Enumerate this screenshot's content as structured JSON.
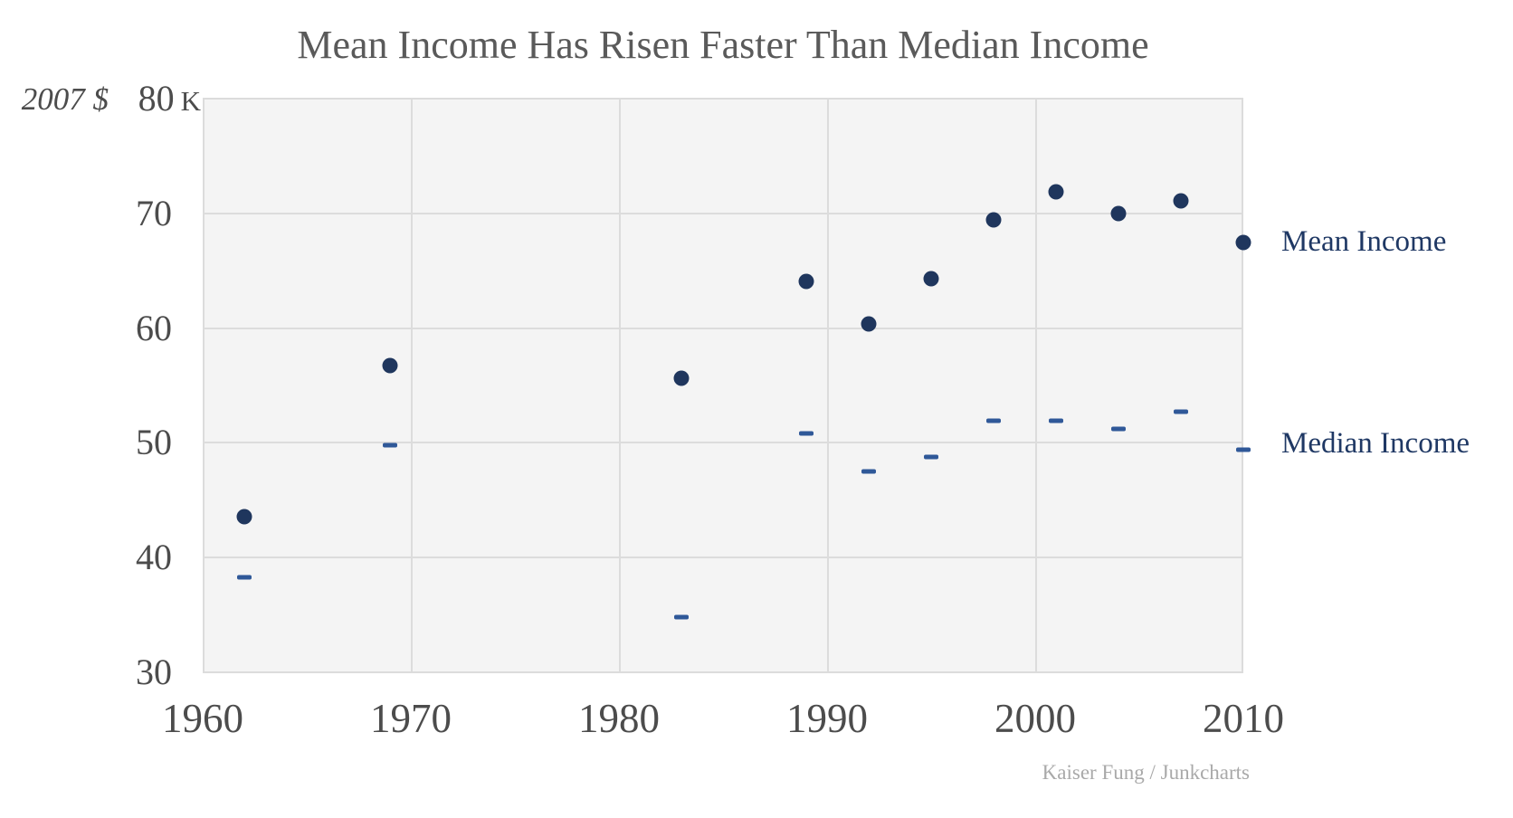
{
  "title": "Mean Income Has Risen Faster Than Median Income",
  "y_axis": {
    "unit_label": "2007 $",
    "top_tick_suffix": "K",
    "tick_labels": [
      "80",
      "70",
      "60",
      "50",
      "40",
      "30"
    ]
  },
  "x_axis": {
    "tick_labels": [
      "1960",
      "1970",
      "1980",
      "1990",
      "2000",
      "2010"
    ]
  },
  "legend": {
    "mean_label": "Mean Income",
    "median_label": "Median Income"
  },
  "attribution": "Kaiser Fung / Junkcharts",
  "colors": {
    "mean_dot": "#1f365d",
    "median_dash": "#2f5898",
    "legend_text": "#1f3864",
    "grid": "#dcdcdc",
    "plot_background": "#f4f4f4",
    "axis_text": "#4c4c4c",
    "title_text": "#5a5a5a",
    "attribution_text": "#a9a9a9"
  },
  "chart_data": {
    "type": "scatter",
    "title": "Mean Income Has Risen Faster Than Median Income",
    "x": [
      1962,
      1969,
      1983,
      1989,
      1992,
      1995,
      1998,
      2001,
      2004,
      2007,
      2010
    ],
    "series": [
      {
        "name": "Mean Income",
        "marker": "circle",
        "values": [
          43.6,
          56.7,
          55.6,
          64.1,
          60.4,
          64.3,
          69.4,
          71.9,
          70.0,
          71.1,
          67.5
        ]
      },
      {
        "name": "Median Income",
        "marker": "dash",
        "values": [
          38.3,
          49.8,
          34.8,
          50.8,
          47.5,
          48.8,
          51.9,
          51.9,
          51.2,
          52.7,
          49.4
        ]
      }
    ],
    "xlabel": "",
    "ylabel": "2007 $ (thousands)",
    "xlim": [
      1960,
      2010
    ],
    "ylim": [
      30,
      80
    ],
    "x_ticks": [
      1960,
      1970,
      1980,
      1990,
      2000,
      2010
    ],
    "y_ticks": [
      80,
      70,
      60,
      50,
      40,
      30
    ],
    "grid": true,
    "legend_position": "right-of-last-point",
    "units": "thousands of 2007 dollars"
  }
}
